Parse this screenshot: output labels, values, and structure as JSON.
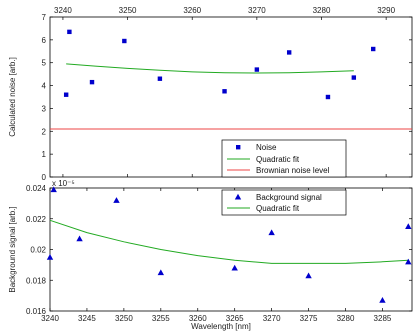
{
  "colors": {
    "marker": "#0000cc",
    "fit": "#22aa22",
    "brownian": "#ee4444",
    "axis": "#000000"
  },
  "chart_data": [
    {
      "type": "scatter",
      "title": "",
      "xlabel": "",
      "ylabel": "Calculated noise [arb.]",
      "x_scale_label": "",
      "y_scale_label": "x 10⁻⁵",
      "xlim": [
        3238,
        3294
      ],
      "ylim": [
        0,
        7
      ],
      "x_ticks": [
        3240,
        3250,
        3260,
        3270,
        3280,
        3290
      ],
      "y_ticks": [
        0,
        1,
        2,
        3,
        4,
        5,
        6,
        7
      ],
      "x_ticks_position": "top",
      "grid": false,
      "legend_position": "bottom-right",
      "series": [
        {
          "name": "Noise",
          "kind": "marker-square",
          "x": [
            3240.5,
            3241,
            3244.5,
            3249.5,
            3255,
            3265,
            3270,
            3275,
            3281,
            3285
          ],
          "y": [
            3.6,
            6.35,
            4.15,
            5.95,
            4.3,
            3.75,
            4.7,
            5.45,
            3.5,
            4.35
          ]
        },
        {
          "name": "Quadratic fit",
          "kind": "line",
          "x": [
            3240.5,
            3245,
            3250,
            3255,
            3260,
            3265,
            3270,
            3275,
            3280,
            3285
          ],
          "y": [
            4.95,
            4.85,
            4.75,
            4.67,
            4.6,
            4.56,
            4.55,
            4.56,
            4.6,
            4.65
          ]
        },
        {
          "name": "Brownian noise level",
          "kind": "hline",
          "x": [
            3238,
            3294
          ],
          "y": [
            2.1,
            2.1
          ]
        }
      ],
      "extra_points": [
        {
          "x": 3288,
          "y": 5.6
        }
      ]
    },
    {
      "type": "scatter",
      "title": "",
      "xlabel": "Wavelength [nm]",
      "ylabel": "Background signal [arb.]",
      "xlim": [
        3240,
        3289
      ],
      "ylim": [
        0.016,
        0.024
      ],
      "x_ticks": [
        3240,
        3245,
        3250,
        3255,
        3260,
        3265,
        3270,
        3275,
        3280,
        3285
      ],
      "y_ticks": [
        0.016,
        0.018,
        0.02,
        0.022,
        0.024
      ],
      "y_tick_labels": [
        "0.016",
        "0.018",
        "0.02",
        "0.022",
        "0.024"
      ],
      "grid": false,
      "legend_position": "top-center",
      "series": [
        {
          "name": "Background signal",
          "kind": "marker-triangle",
          "x": [
            3240,
            3240.5,
            3244,
            3249,
            3255,
            3265,
            3270,
            3275,
            3285,
            3288.5,
            3288.5
          ],
          "y": [
            0.0195,
            0.0239,
            0.0207,
            0.0232,
            0.0185,
            0.0188,
            0.0211,
            0.0183,
            0.0167,
            0.0215,
            0.0192
          ]
        },
        {
          "name": "Quadratic fit",
          "kind": "line",
          "x": [
            3240,
            3245,
            3250,
            3255,
            3260,
            3265,
            3270,
            3275,
            3280,
            3285,
            3288.5
          ],
          "y": [
            0.0219,
            0.0211,
            0.0205,
            0.02,
            0.0196,
            0.0193,
            0.0191,
            0.0191,
            0.0191,
            0.0192,
            0.0193
          ]
        }
      ]
    }
  ]
}
